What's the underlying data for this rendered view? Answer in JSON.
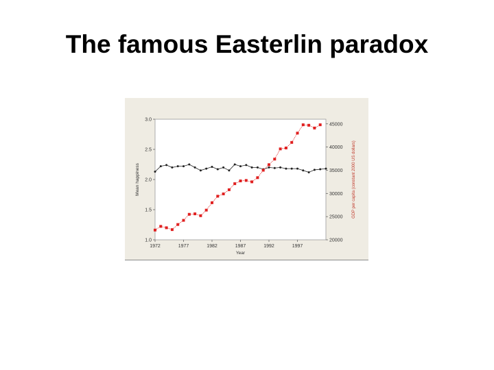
{
  "slide": {
    "title": "The famous Easterlin paradox"
  },
  "chart_data": {
    "type": "line",
    "xlabel": "Year",
    "ylabel_left": "Mean happiness",
    "ylabel_right": "GDP per capita (constant 2000 US dollars)",
    "x_ticks": [
      1972,
      1977,
      1982,
      1987,
      1992,
      1997
    ],
    "x_range": [
      1972,
      2002
    ],
    "left_ylim": [
      1.0,
      3.0
    ],
    "left_y_ticks": [
      "1.0",
      "1.5",
      "2.0",
      "2.5",
      "3.0"
    ],
    "right_ylim": [
      20000,
      46000
    ],
    "right_y_ticks": [
      "20000",
      "25000",
      "30000",
      "35000",
      "40000",
      "45000"
    ],
    "grid": false,
    "series": [
      {
        "axis": "left",
        "color": "#222222",
        "marker": "dot",
        "x": [
          1972,
          1973,
          1974,
          1975,
          1976,
          1977,
          1978,
          1979,
          1980,
          1981,
          1982,
          1983,
          1984,
          1985,
          1986,
          1987,
          1988,
          1989,
          1990,
          1991,
          1992,
          1993,
          1994,
          1995,
          1996,
          1997,
          1998,
          1999,
          2000,
          2001,
          2002
        ],
        "y": [
          2.13,
          2.22,
          2.24,
          2.2,
          2.22,
          2.22,
          2.25,
          2.2,
          2.15,
          2.18,
          2.21,
          2.17,
          2.2,
          2.15,
          2.25,
          2.22,
          2.24,
          2.2,
          2.2,
          2.17,
          2.2,
          2.19,
          2.2,
          2.18,
          2.18,
          2.18,
          2.15,
          2.12,
          2.16,
          2.17,
          2.18
        ]
      },
      {
        "axis": "right",
        "color": "#e02020",
        "marker": "square",
        "x": [
          1972,
          1973,
          1974,
          1975,
          1976,
          1977,
          1978,
          1979,
          1980,
          1981,
          1982,
          1983,
          1984,
          1985,
          1986,
          1987,
          1988,
          1989,
          1990,
          1991,
          1992,
          1993,
          1994,
          1995,
          1996,
          1997,
          1998,
          1999,
          2000,
          2001
        ],
        "y": [
          22100,
          22900,
          22600,
          22200,
          23300,
          24200,
          25500,
          25600,
          25200,
          26400,
          28000,
          29400,
          29900,
          30800,
          32100,
          32700,
          32800,
          32500,
          33400,
          35000,
          36200,
          37400,
          39600,
          39800,
          41000,
          43000,
          44800,
          44700,
          44100,
          44800
        ]
      }
    ]
  }
}
